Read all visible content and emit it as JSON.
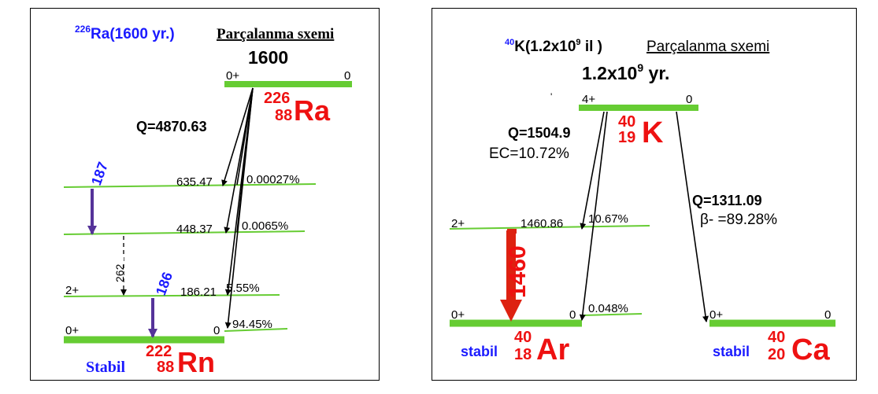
{
  "left": {
    "title_sup": "226",
    "title_main": "Ra(1600 yr.)",
    "title_scheme": "Parçalanma sxemi",
    "halflife": "1600",
    "parent": {
      "spin": "0+",
      "energy": "0",
      "mass": "226",
      "z": "88",
      "symbol": "Ra"
    },
    "q_label": "Q=4870.63",
    "levels": [
      {
        "spin": "",
        "energy": "635.47",
        "branch": "0.00027%"
      },
      {
        "spin": "",
        "energy": "448.37",
        "branch": "0.0065%"
      },
      {
        "spin": "2+",
        "energy": "186.21",
        "branch": "5.55%"
      },
      {
        "spin": "0+",
        "energy": "0",
        "branch": "94.45%"
      }
    ],
    "gammas": [
      "187",
      "262",
      "186"
    ],
    "daughter": {
      "stable": "Stabil",
      "mass": "222",
      "z": "88",
      "symbol": "Rn"
    }
  },
  "right": {
    "title_sup": "40",
    "title_main_a": "K(1.2x10",
    "title_main_sup": "9",
    "title_main_b": " il  )",
    "title_scheme": "Parçalanma sxemi",
    "halflife_a": "1.2x10",
    "halflife_sup": "9",
    "halflife_b": " yr.",
    "dot": "'",
    "parent": {
      "spin": "4+",
      "energy": "0",
      "mass": "40",
      "z": "19",
      "symbol": "K"
    },
    "ec_q": "Q=1504.9",
    "ec_pct": "EC=10.72%",
    "beta_q": "Q=1311.09",
    "beta_pct": "β- =89.28%",
    "ar_levels": [
      {
        "spin": "2+",
        "energy": "1460.86",
        "branch": "10.67%"
      },
      {
        "spin": "0+",
        "energy": "0",
        "branch": "0.048%"
      }
    ],
    "gamma": "1460",
    "ar": {
      "stable": "stabil",
      "mass": "40",
      "z": "18",
      "symbol": "Ar"
    },
    "ca": {
      "spin": "0+",
      "energy": "0",
      "stable": "stabil",
      "mass": "40",
      "z": "20",
      "symbol": "Ca"
    }
  },
  "colors": {
    "level": "#66cc33",
    "red": "#ee1111",
    "blue": "#1a1aff",
    "gamma": "#553399",
    "gamma_red": "#dd2211"
  }
}
